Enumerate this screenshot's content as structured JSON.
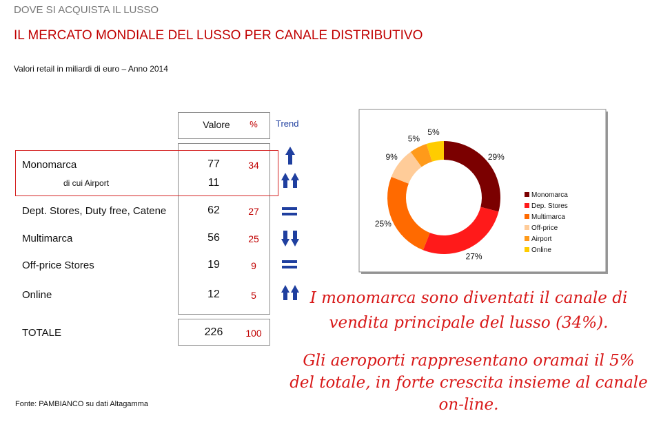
{
  "header": {
    "section": "DOVE SI ACQUISTA IL LUSSO",
    "title": "IL MERCATO MONDIALE DEL LUSSO PER CANALE DISTRIBUTIVO",
    "subtitle": "Valori retail in miliardi di euro – Anno 2014"
  },
  "table": {
    "columns": [
      "Valore",
      "%",
      "Trend"
    ],
    "rows": [
      [
        "Monomarca",
        "77",
        "34"
      ],
      [
        "di cui Airport",
        "11"
      ],
      [
        "Dept. Stores, Duty free, Catene",
        "62",
        "27"
      ],
      [
        "Multimarca",
        "56",
        "25"
      ],
      [
        "Off-price Stores",
        "19",
        "9"
      ],
      [
        "Online",
        "12",
        "5"
      ]
    ],
    "total": [
      "TOTALE",
      "226",
      "100"
    ]
  },
  "chart_data": {
    "type": "donut",
    "categories": [
      "Monomarca",
      "Dep. Stores",
      "Multimarca",
      "Off-price",
      "Airport",
      "Online"
    ],
    "values": [
      29,
      27,
      25,
      9,
      5,
      5
    ],
    "value_labels": [
      "29%",
      "27%",
      "25%",
      "9%",
      "5%",
      "5%"
    ],
    "colors": [
      "#7b0000",
      "#ff1a1a",
      "#ff6a00",
      "#ffcc99",
      "#ff9a1a",
      "#ffcc00"
    ]
  },
  "notes": [
    "I monomarca sono diventati il canale di vendita principale del lusso (34%).",
    "Gli aeroporti rappresentano oramai il 5% del totale, in forte crescita insieme al canale on-line."
  ],
  "source": "Fonte: PAMBIANCO su dati Altagamma"
}
